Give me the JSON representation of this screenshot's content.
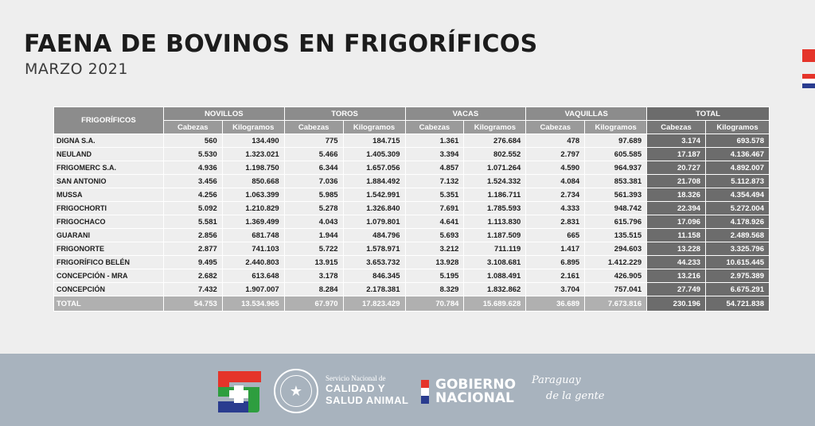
{
  "header": {
    "title": "FAENA DE BOVINOS EN FRIGORÍFICOS",
    "subtitle": "MARZO 2021"
  },
  "table": {
    "col_frig": "FRIGORÍFICOS",
    "groups": [
      "NOVILLOS",
      "TOROS",
      "VACAS",
      "VAQUILLAS",
      "TOTAL"
    ],
    "sub_cabezas": "Cabezas",
    "sub_kilogramos": "Kilogramos",
    "rows": [
      {
        "name": "DIGNA S.A.",
        "v": [
          "560",
          "134.490",
          "775",
          "184.715",
          "1.361",
          "276.684",
          "478",
          "97.689",
          "3.174",
          "693.578"
        ]
      },
      {
        "name": "NEULAND",
        "v": [
          "5.530",
          "1.323.021",
          "5.466",
          "1.405.309",
          "3.394",
          "802.552",
          "2.797",
          "605.585",
          "17.187",
          "4.136.467"
        ]
      },
      {
        "name": "FRIGOMERC S.A.",
        "v": [
          "4.936",
          "1.198.750",
          "6.344",
          "1.657.056",
          "4.857",
          "1.071.264",
          "4.590",
          "964.937",
          "20.727",
          "4.892.007"
        ]
      },
      {
        "name": "SAN ANTONIO",
        "v": [
          "3.456",
          "850.668",
          "7.036",
          "1.884.492",
          "7.132",
          "1.524.332",
          "4.084",
          "853.381",
          "21.708",
          "5.112.873"
        ]
      },
      {
        "name": "MUSSA",
        "v": [
          "4.256",
          "1.063.399",
          "5.985",
          "1.542.991",
          "5.351",
          "1.186.711",
          "2.734",
          "561.393",
          "18.326",
          "4.354.494"
        ]
      },
      {
        "name": "FRIGOCHORTI",
        "v": [
          "5.092",
          "1.210.829",
          "5.278",
          "1.326.840",
          "7.691",
          "1.785.593",
          "4.333",
          "948.742",
          "22.394",
          "5.272.004"
        ]
      },
      {
        "name": "FRIGOCHACO",
        "v": [
          "5.581",
          "1.369.499",
          "4.043",
          "1.079.801",
          "4.641",
          "1.113.830",
          "2.831",
          "615.796",
          "17.096",
          "4.178.926"
        ]
      },
      {
        "name": "GUARANI",
        "v": [
          "2.856",
          "681.748",
          "1.944",
          "484.796",
          "5.693",
          "1.187.509",
          "665",
          "135.515",
          "11.158",
          "2.489.568"
        ]
      },
      {
        "name": "FRIGONORTE",
        "v": [
          "2.877",
          "741.103",
          "5.722",
          "1.578.971",
          "3.212",
          "711.119",
          "1.417",
          "294.603",
          "13.228",
          "3.325.796"
        ]
      },
      {
        "name": "FRIGORÍFICO BELÉN",
        "v": [
          "9.495",
          "2.440.803",
          "13.915",
          "3.653.732",
          "13.928",
          "3.108.681",
          "6.895",
          "1.412.229",
          "44.233",
          "10.615.445"
        ]
      },
      {
        "name": "CONCEPCIÓN - MRA",
        "v": [
          "2.682",
          "613.648",
          "3.178",
          "846.345",
          "5.195",
          "1.088.491",
          "2.161",
          "426.905",
          "13.216",
          "2.975.389"
        ]
      },
      {
        "name": "CONCEPCIÓN",
        "v": [
          "7.432",
          "1.907.007",
          "8.284",
          "2.178.381",
          "8.329",
          "1.832.862",
          "3.704",
          "757.041",
          "27.749",
          "6.675.291"
        ]
      }
    ],
    "total": {
      "name": "TOTAL",
      "v": [
        "54.753",
        "13.534.965",
        "67.970",
        "17.823.429",
        "70.784",
        "15.689.628",
        "36.689",
        "7.673.816",
        "230.196",
        "54.721.838"
      ]
    }
  },
  "footer": {
    "senacsa_line1": "Servicio Nacional de",
    "senacsa_line2": "CALIDAD Y",
    "senacsa_line3": "SALUD ANIMAL",
    "gobierno_line1": "GOBIERNO",
    "gobierno_line2": "NACIONAL",
    "slogan_line1": "Paraguay",
    "slogan_line2": "de la gente",
    "seal_icon": "star-icon",
    "colors": {
      "red": "#e5342a",
      "blue": "#2a3c8f",
      "green": "#2e9e3f",
      "footer_bg": "#a8b3be"
    }
  }
}
